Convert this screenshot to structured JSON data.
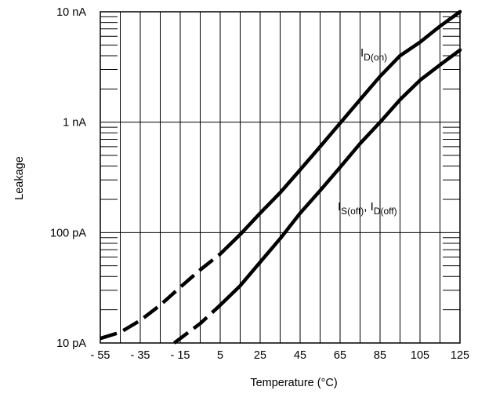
{
  "chart_data": {
    "type": "line",
    "title": "",
    "xlabel": "Temperature (°C)",
    "ylabel": "Leakage",
    "xlim": [
      -55,
      125
    ],
    "ylim": [
      1e-11,
      1e-08
    ],
    "yscale": "log",
    "grid": true,
    "x_ticks": [
      -55,
      -35,
      -15,
      5,
      25,
      45,
      65,
      85,
      105,
      125
    ],
    "x_tick_labels": [
      "- 55",
      "- 35",
      "- 15",
      "5",
      "25",
      "45",
      "65",
      "85",
      "105",
      "125"
    ],
    "y_ticks": [
      1e-11,
      1e-10,
      1e-09,
      1e-08
    ],
    "y_tick_labels": [
      "10 pA",
      "100 pA",
      "1 nA",
      "10 nA"
    ],
    "series": [
      {
        "name": "I_D(on)",
        "label_main": "I",
        "label_sub": "D(on)",
        "points": [
          {
            "x": -55,
            "y": 1.1e-11,
            "extrapolated": true
          },
          {
            "x": -45,
            "y": 1.25e-11,
            "extrapolated": true
          },
          {
            "x": -35,
            "y": 1.6e-11,
            "extrapolated": true
          },
          {
            "x": -25,
            "y": 2.2e-11,
            "extrapolated": true
          },
          {
            "x": -15,
            "y": 3.2e-11,
            "extrapolated": true
          },
          {
            "x": -5,
            "y": 4.6e-11,
            "extrapolated": true
          },
          {
            "x": 5,
            "y": 6.4e-11,
            "extrapolated": false
          },
          {
            "x": 15,
            "y": 9.6e-11,
            "extrapolated": false
          },
          {
            "x": 25,
            "y": 1.5e-10,
            "extrapolated": false
          },
          {
            "x": 35,
            "y": 2.3e-10,
            "extrapolated": false
          },
          {
            "x": 45,
            "y": 3.7e-10,
            "extrapolated": false
          },
          {
            "x": 55,
            "y": 6e-10,
            "extrapolated": false
          },
          {
            "x": 65,
            "y": 9.8e-10,
            "extrapolated": false
          },
          {
            "x": 75,
            "y": 1.6e-09,
            "extrapolated": false
          },
          {
            "x": 85,
            "y": 2.6e-09,
            "extrapolated": false
          },
          {
            "x": 95,
            "y": 4e-09,
            "extrapolated": false
          },
          {
            "x": 105,
            "y": 5.3e-09,
            "extrapolated": false
          },
          {
            "x": 115,
            "y": 7.4e-09,
            "extrapolated": false
          },
          {
            "x": 125,
            "y": 1e-08,
            "extrapolated": false
          }
        ]
      },
      {
        "name": "I_S(off), I_D(off)",
        "label_main": "I",
        "label_sub": "S(off)",
        "label_sep": ", I",
        "label_sub2": "D(off)",
        "points": [
          {
            "x": -18,
            "y": 1e-11,
            "extrapolated": true
          },
          {
            "x": -5,
            "y": 1.5e-11,
            "extrapolated": true
          },
          {
            "x": 5,
            "y": 2.2e-11,
            "extrapolated": false
          },
          {
            "x": 15,
            "y": 3.3e-11,
            "extrapolated": false
          },
          {
            "x": 25,
            "y": 5.4e-11,
            "extrapolated": false
          },
          {
            "x": 35,
            "y": 8.8e-11,
            "extrapolated": false
          },
          {
            "x": 45,
            "y": 1.5e-10,
            "extrapolated": false
          },
          {
            "x": 55,
            "y": 2.4e-10,
            "extrapolated": false
          },
          {
            "x": 65,
            "y": 3.9e-10,
            "extrapolated": false
          },
          {
            "x": 75,
            "y": 6.4e-10,
            "extrapolated": false
          },
          {
            "x": 85,
            "y": 1e-09,
            "extrapolated": false
          },
          {
            "x": 95,
            "y": 1.6e-09,
            "extrapolated": false
          },
          {
            "x": 105,
            "y": 2.4e-09,
            "extrapolated": false
          },
          {
            "x": 115,
            "y": 3.3e-09,
            "extrapolated": false
          },
          {
            "x": 125,
            "y": 4.5e-09,
            "extrapolated": false
          }
        ]
      }
    ]
  }
}
